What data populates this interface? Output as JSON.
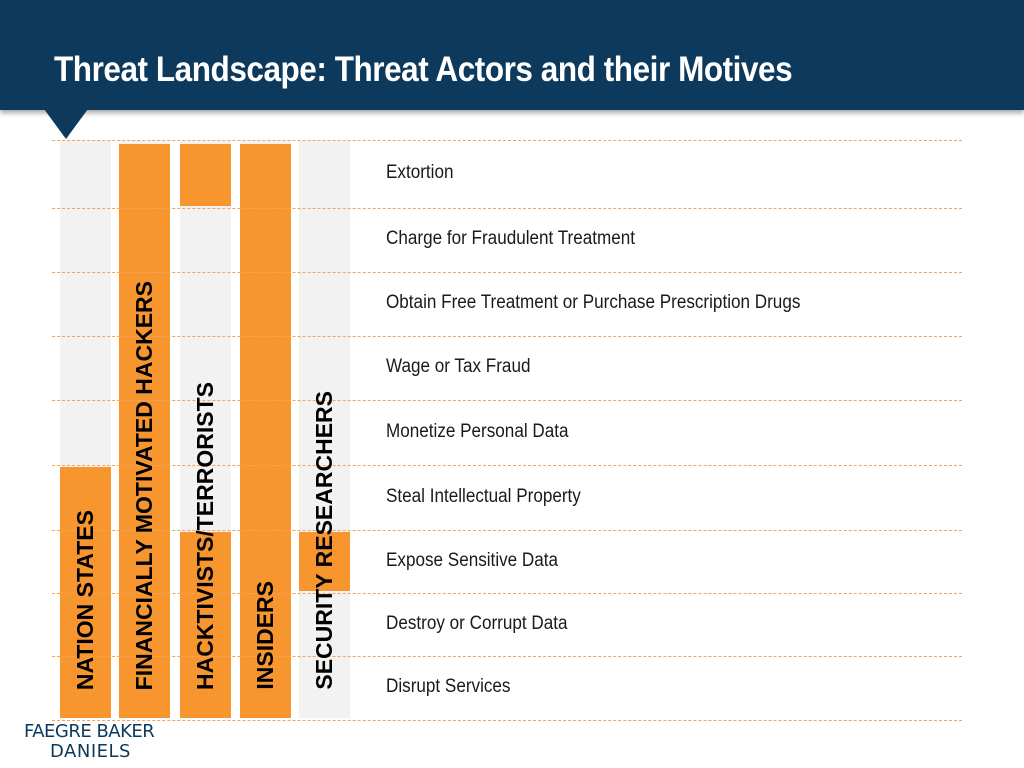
{
  "title": "Threat Landscape: Threat Actors and their Motives",
  "colors": {
    "header": "#0d3a5c",
    "bar": "#f7962e",
    "column_background": "#f2f2f2",
    "divider": "#f7a452"
  },
  "motives": [
    "Extortion",
    "Charge for Fraudulent Treatment",
    "Obtain Free Treatment or Purchase Prescription Drugs",
    "Wage or Tax Fraud",
    "Monetize Personal Data",
    "Steal Intellectual Property",
    "Expose Sensitive Data",
    "Destroy or Corrupt Data",
    "Disrupt Services"
  ],
  "actors": [
    {
      "label": "NATION STATES",
      "motives": [
        "Steal Intellectual Property",
        "Expose Sensitive Data",
        "Destroy or Corrupt Data",
        "Disrupt Services"
      ]
    },
    {
      "label": "FINANCIALLY MOTIVATED HACKERS",
      "motives": [
        "Extortion",
        "Charge for Fraudulent Treatment",
        "Obtain Free Treatment or Purchase Prescription Drugs",
        "Wage or Tax Fraud",
        "Monetize Personal Data",
        "Steal Intellectual Property",
        "Expose Sensitive Data",
        "Destroy or Corrupt Data",
        "Disrupt Services"
      ]
    },
    {
      "label": "HACKTIVISTS/TERRORISTS",
      "motives": [
        "Extortion",
        "Expose Sensitive Data",
        "Destroy or Corrupt Data",
        "Disrupt Services"
      ]
    },
    {
      "label": "INSIDERS",
      "motives": [
        "Extortion",
        "Charge for Fraudulent Treatment",
        "Obtain Free Treatment or Purchase Prescription Drugs",
        "Wage or Tax Fraud",
        "Monetize Personal Data",
        "Steal Intellectual Property",
        "Expose Sensitive Data",
        "Destroy or Corrupt Data",
        "Disrupt Services"
      ]
    },
    {
      "label": "SECURITY RESEARCHERS",
      "motives": [
        "Expose Sensitive Data"
      ]
    }
  ],
  "logo": {
    "line1": "FAEGRE BAKER",
    "line2": "DANIELS"
  }
}
